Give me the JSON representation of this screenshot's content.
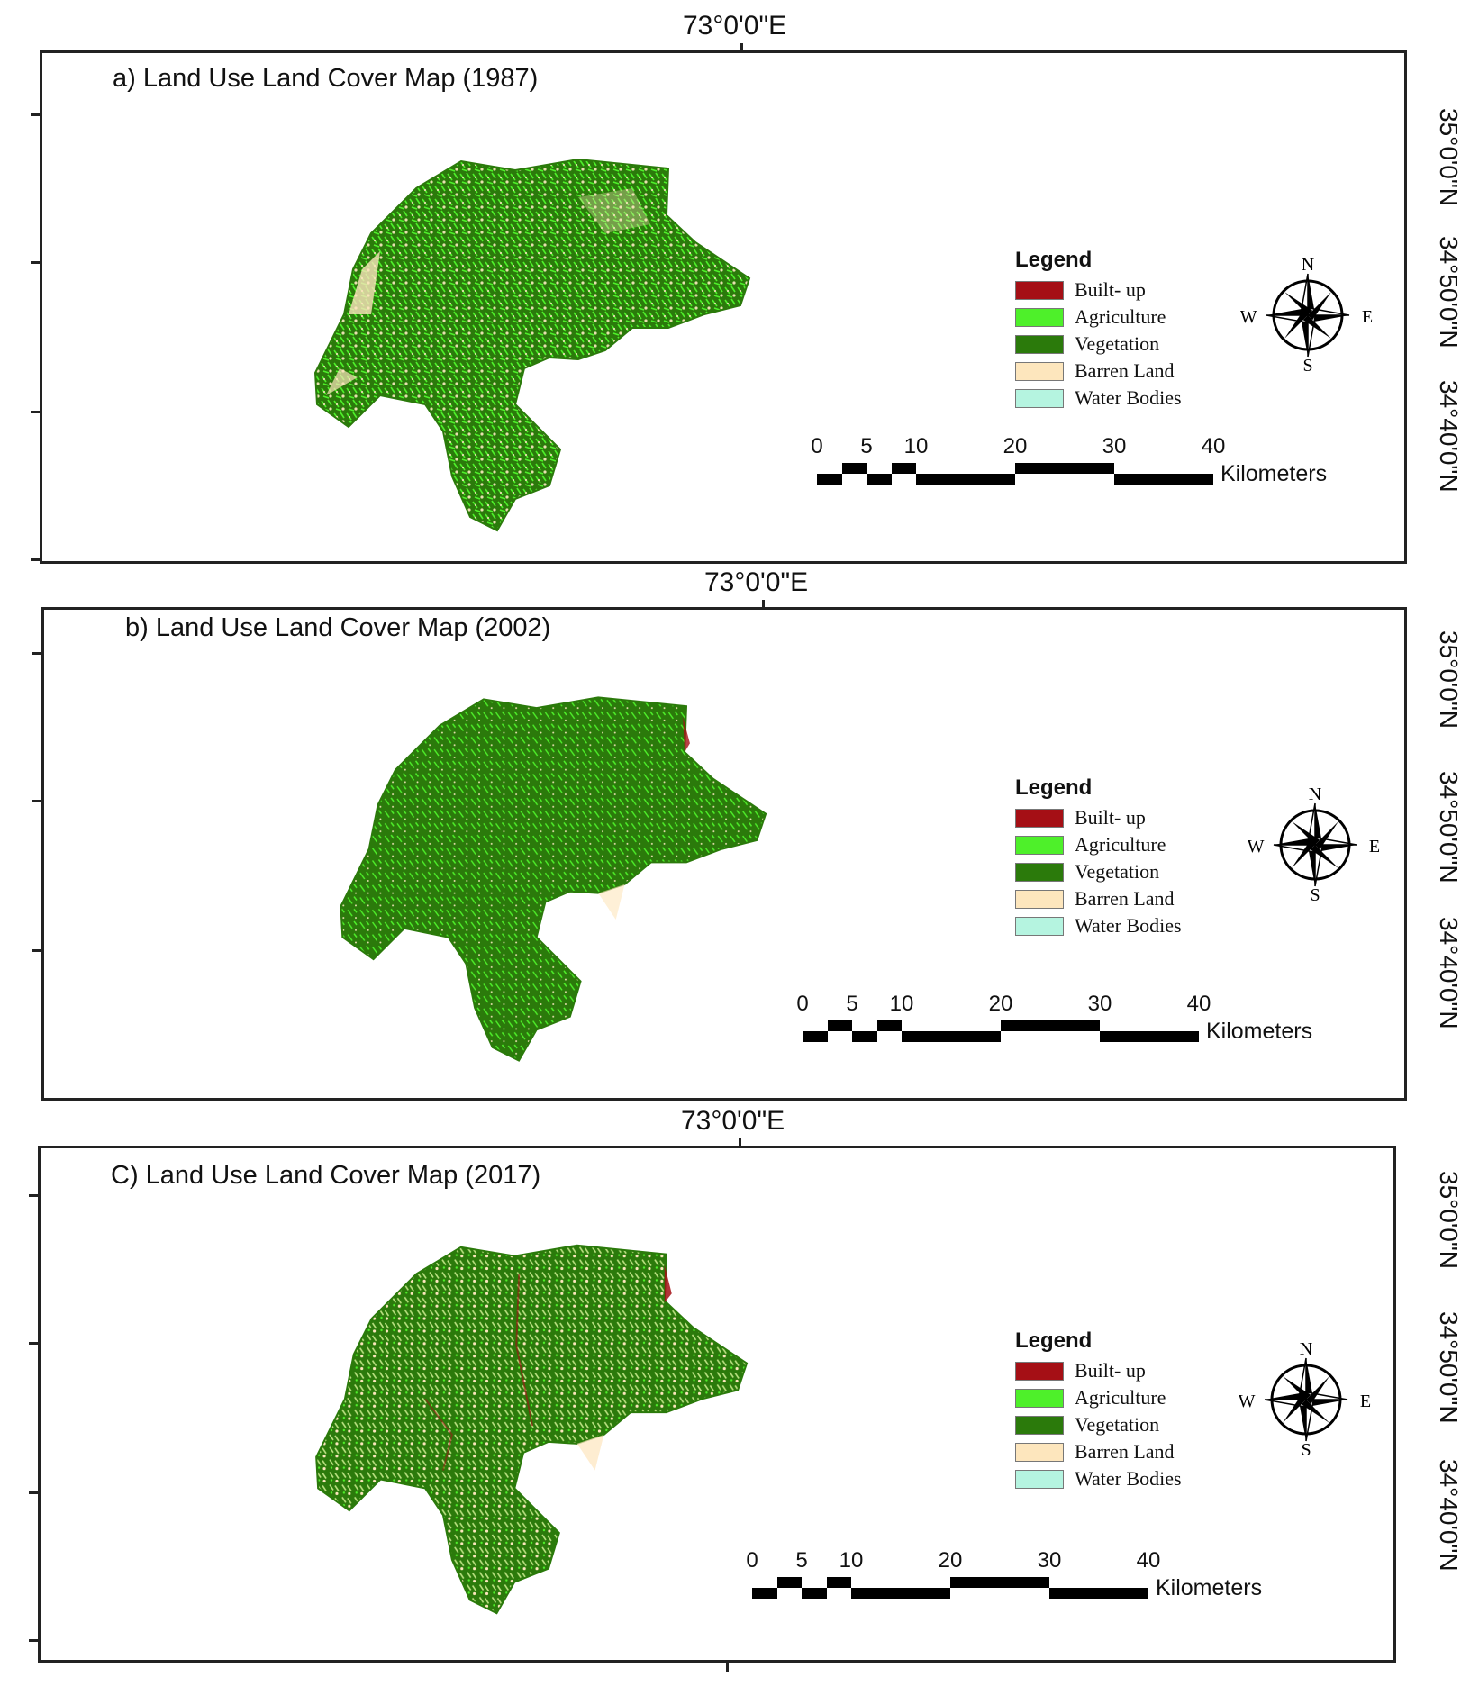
{
  "panels": [
    {
      "id": "a",
      "title": "a) Land Use Land Cover Map (1987)",
      "longitude_label": "73°0'0\"E",
      "latitude_labels": [
        "35°0'0\"N",
        "34°50'0\"N",
        "34°40'0\"N"
      ]
    },
    {
      "id": "b",
      "title": "b) Land Use Land Cover Map (2002)",
      "longitude_label": "73°0'0\"E",
      "latitude_labels": [
        "35°0'0\"N",
        "34°50'0\"N",
        "34°40'0\"N"
      ]
    },
    {
      "id": "c",
      "title": "C) Land Use Land Cover Map (2017)",
      "longitude_label": "73°0'0\"E",
      "latitude_labels": [
        "35°0'0\"N",
        "34°50'0\"N",
        "34°40'0\"N"
      ]
    }
  ],
  "legend": {
    "title": "Legend",
    "items": [
      {
        "label": "Built- up",
        "color": "#a50f15"
      },
      {
        "label": "Agriculture",
        "color": "#4ef02a"
      },
      {
        "label": "Vegetation",
        "color": "#2b7a0b"
      },
      {
        "label": "Barren Land",
        "color": "#fde6bd"
      },
      {
        "label": "Water Bodies",
        "color": "#b5f4e0"
      }
    ]
  },
  "scale_bar": {
    "ticks": [
      "0",
      "5",
      "10",
      "20",
      "30",
      "40"
    ],
    "unit": "Kilometers"
  },
  "compass": {
    "n": "N",
    "s": "S",
    "e": "E",
    "w": "W"
  },
  "colors": {
    "vegetation": "#2b7a0b",
    "agriculture": "#4ef02a",
    "barren": "#fde6bd",
    "built_up": "#a50f15",
    "frame": "#222222"
  }
}
